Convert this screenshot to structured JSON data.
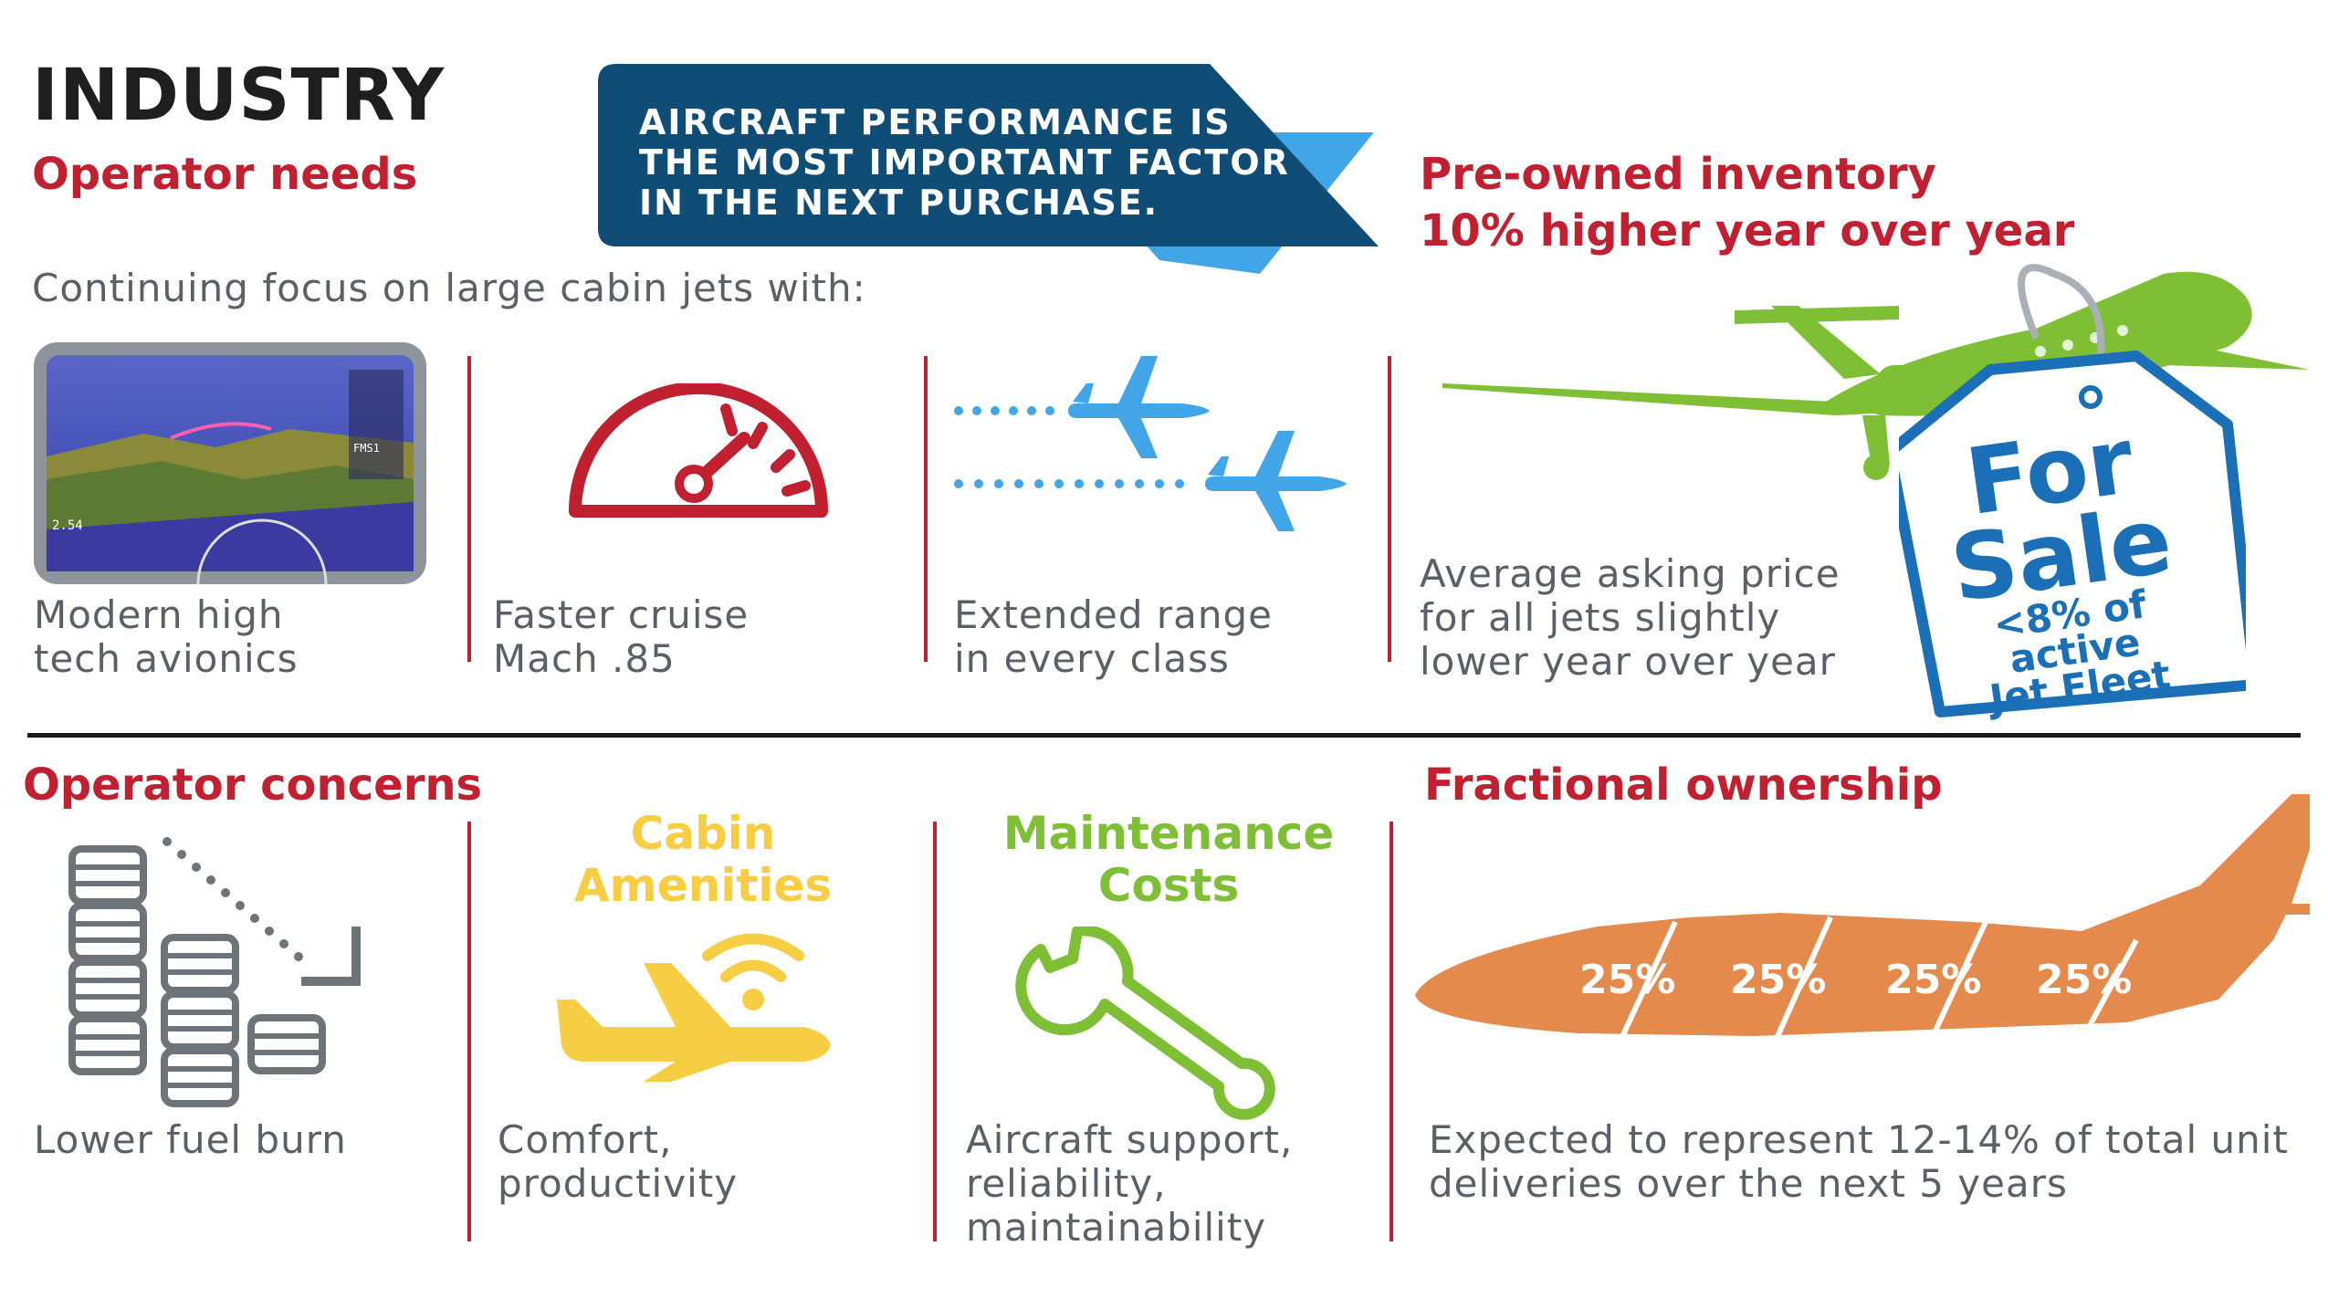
{
  "title": "INDUSTRY",
  "operator_needs": {
    "heading": "Operator needs",
    "intro": "Continuing focus on large cabin jets with:",
    "items": [
      {
        "icon": "avionics-display-icon",
        "line1": "Modern high",
        "line2": "tech avionics"
      },
      {
        "icon": "speedometer-icon",
        "line1": "Faster cruise",
        "line2": "Mach .85"
      },
      {
        "icon": "airplane-range-icon",
        "line1": "Extended range",
        "line2": "in every class"
      }
    ]
  },
  "callout": {
    "line1": "AIRCRAFT PERFORMANCE IS",
    "line2": "THE MOST IMPORTANT FACTOR",
    "line3": "IN THE NEXT PURCHASE."
  },
  "preowned": {
    "heading1": "Pre-owned inventory",
    "heading2": "10% higher year over year",
    "line1": "Average asking price",
    "line2": "for all jets slightly",
    "line3": "lower year over year",
    "tag_line1": "For",
    "tag_line2": "Sale",
    "tag_line3": "<8% of",
    "tag_line4": "active",
    "tag_line5": "Jet Fleet"
  },
  "operator_concerns": {
    "heading": "Operator concerns",
    "fuel": {
      "icon": "fuel-barrels-icon",
      "line1": "Lower fuel burn"
    },
    "cabin": {
      "icon": "wifi-airplane-icon",
      "title1": "Cabin",
      "title2": "Amenities",
      "line1": "Comfort,",
      "line2": "productivity"
    },
    "maintenance": {
      "icon": "wrench-icon",
      "title1": "Maintenance",
      "title2": "Costs",
      "line1": "Aircraft support,",
      "line2": "reliability,",
      "line3": "maintainability"
    }
  },
  "fractional": {
    "heading": "Fractional ownership",
    "shares": [
      "25%",
      "25%",
      "25%",
      "25%"
    ],
    "line1": "Expected to represent 12-14% of total unit",
    "line2": "deliveries over the next 5 years"
  },
  "colors": {
    "red": "#c0202f",
    "navy": "#0f4d76",
    "sky_blue": "#41a5e8",
    "green": "#7fbf36",
    "yellow": "#f7cd44",
    "orange": "#e48a4c",
    "tag_blue": "#1a6fb6",
    "gray_text": "#5b5f66",
    "barrel_gray": "#6e7378"
  }
}
